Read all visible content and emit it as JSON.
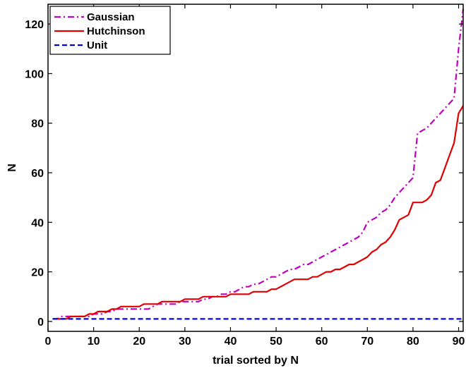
{
  "chart_data": {
    "type": "line",
    "title": "",
    "xlabel": "trial sorted by N",
    "ylabel": "N",
    "xlim": [
      0,
      91
    ],
    "ylim": [
      -4,
      128
    ],
    "xticks": [
      0,
      10,
      20,
      30,
      40,
      50,
      60,
      70,
      80,
      90
    ],
    "yticks": [
      0,
      20,
      40,
      60,
      80,
      100,
      120
    ],
    "grid": false,
    "legend_position": "top-left",
    "series": [
      {
        "name": "Gaussian",
        "color": "#c000c0",
        "dash": "dash-dot",
        "x": [
          1,
          2,
          3,
          4,
          5,
          6,
          7,
          8,
          9,
          10,
          11,
          12,
          13,
          14,
          15,
          16,
          17,
          18,
          19,
          20,
          21,
          22,
          23,
          24,
          25,
          26,
          27,
          28,
          29,
          30,
          31,
          32,
          33,
          34,
          35,
          36,
          37,
          38,
          39,
          40,
          41,
          42,
          43,
          44,
          45,
          46,
          47,
          48,
          49,
          50,
          51,
          52,
          53,
          54,
          55,
          56,
          57,
          58,
          59,
          60,
          61,
          62,
          63,
          64,
          65,
          66,
          67,
          68,
          69,
          70,
          71,
          72,
          73,
          74,
          75,
          76,
          77,
          78,
          79,
          80,
          81,
          82,
          83,
          84,
          85,
          86,
          87,
          88,
          89,
          90,
          91
        ],
        "values": [
          1,
          1,
          2,
          2,
          2,
          2,
          2,
          2,
          2,
          3,
          3,
          3,
          4,
          4,
          5,
          5,
          5,
          5,
          5,
          5,
          5,
          5,
          6,
          7,
          7,
          7,
          7,
          7,
          8,
          8,
          8,
          8,
          8,
          9,
          9,
          10,
          10,
          11,
          11,
          12,
          12,
          13,
          14,
          14,
          15,
          15,
          16,
          17,
          18,
          18,
          19,
          20,
          21,
          21,
          22,
          23,
          23,
          24,
          25,
          26,
          27,
          28,
          29,
          30,
          31,
          32,
          33,
          34,
          36,
          40,
          41,
          42,
          44,
          45,
          47,
          50,
          52,
          54,
          56,
          58,
          76,
          77,
          78,
          80,
          82,
          84,
          86,
          88,
          90,
          110,
          126
        ]
      },
      {
        "name": "Hutchinson",
        "color": "#e00000",
        "dash": "solid",
        "x": [
          1,
          2,
          3,
          4,
          5,
          6,
          7,
          8,
          9,
          10,
          11,
          12,
          13,
          14,
          15,
          16,
          17,
          18,
          19,
          20,
          21,
          22,
          23,
          24,
          25,
          26,
          27,
          28,
          29,
          30,
          31,
          32,
          33,
          34,
          35,
          36,
          37,
          38,
          39,
          40,
          41,
          42,
          43,
          44,
          45,
          46,
          47,
          48,
          49,
          50,
          51,
          52,
          53,
          54,
          55,
          56,
          57,
          58,
          59,
          60,
          61,
          62,
          63,
          64,
          65,
          66,
          67,
          68,
          69,
          70,
          71,
          72,
          73,
          74,
          75,
          76,
          77,
          78,
          79,
          80,
          81,
          82,
          83,
          84,
          85,
          86,
          87,
          88,
          89,
          90,
          91
        ],
        "values": [
          1,
          1,
          1,
          1,
          2,
          2,
          2,
          2,
          3,
          3,
          4,
          4,
          4,
          5,
          5,
          6,
          6,
          6,
          6,
          6,
          7,
          7,
          7,
          7,
          8,
          8,
          8,
          8,
          8,
          9,
          9,
          9,
          9,
          10,
          10,
          10,
          10,
          10,
          10,
          11,
          11,
          11,
          11,
          11,
          12,
          12,
          12,
          12,
          13,
          13,
          14,
          15,
          16,
          17,
          17,
          17,
          17,
          18,
          18,
          19,
          20,
          20,
          21,
          21,
          22,
          23,
          23,
          24,
          25,
          26,
          28,
          29,
          31,
          32,
          34,
          37,
          41,
          42,
          43,
          48,
          48,
          48,
          49,
          51,
          56,
          57,
          62,
          67,
          72,
          84,
          87
        ]
      },
      {
        "name": "Unit",
        "color": "#0000e0",
        "dash": "dashed",
        "x": [
          1,
          91
        ],
        "values": [
          1,
          1
        ]
      }
    ]
  }
}
